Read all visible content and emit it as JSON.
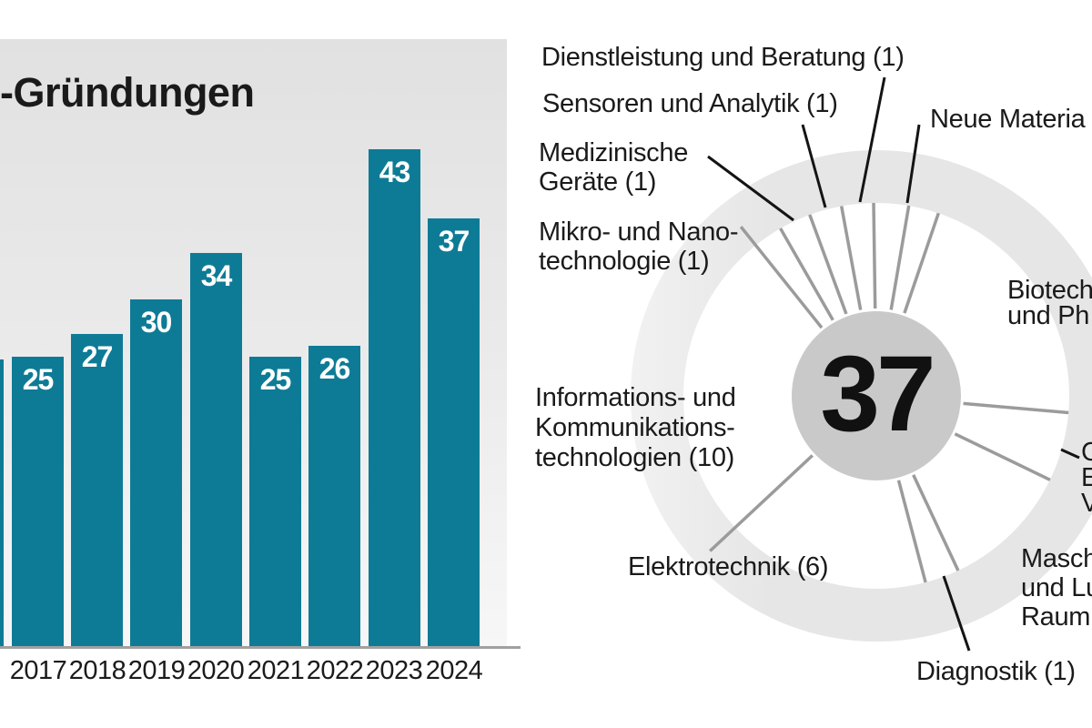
{
  "colors": {
    "bar_teal": "#0e7b96",
    "panel_gray_top": "#e1e1e1",
    "panel_gray_bottom": "#f7f7f7",
    "ring_gray": "#e6e6e6",
    "hub_gray": "#c9c9c9",
    "spoke_gray": "#9b9b9b",
    "leader_black": "#141414",
    "bar_value_text": "#ffffff"
  },
  "bar_chart": {
    "title": "-Gründungen",
    "years": [
      "2017",
      "2018",
      "2019",
      "2020",
      "2021",
      "2022",
      "2023",
      "2024"
    ],
    "values": [
      25,
      27,
      30,
      34,
      25,
      26,
      43,
      37
    ],
    "partial_bar_on_left_edge": true
  },
  "donut": {
    "total": "37",
    "labels": {
      "dienstleistung": {
        "l1": "Dienstleistung und Beratung (1)"
      },
      "sensoren": {
        "l1": "Sensoren und Analytik (1)"
      },
      "medizinische": {
        "l1": "Medizinische",
        "l2": "Geräte (1)"
      },
      "mikro": {
        "l1": "Mikro- und Nano-",
        "l2": "technologie (1)"
      },
      "neue_materialien": {
        "l1": "Neue Materia"
      },
      "biotech": {
        "l1": "Biotech",
        "l2": "und Ph"
      },
      "ikt": {
        "l1": "Informations- und",
        "l2": "Kommunikations-",
        "l3": "technologien (10)"
      },
      "elektrotechnik": {
        "l1": "Elektrotechnik (6)"
      },
      "maschinenbau": {
        "l1": "Masch",
        "l2": "und Lu",
        "l3": "Raum"
      },
      "diagnostik": {
        "l1": "Diagnostik (1)"
      },
      "clipped_right": {
        "l1": "C",
        "l2": "E",
        "l3": "V"
      }
    }
  },
  "chart_data": [
    {
      "type": "bar",
      "title": "-Gründungen (title clipped at left image edge)",
      "categories": [
        "2017",
        "2018",
        "2019",
        "2020",
        "2021",
        "2022",
        "2023",
        "2024"
      ],
      "values": [
        25,
        27,
        30,
        34,
        25,
        26,
        43,
        37
      ],
      "xlabel": "",
      "ylabel": "",
      "ylim": [
        0,
        45
      ],
      "bar_color": "#0e7b96",
      "value_labels": "inside bar top, white bold",
      "grid": false,
      "note": "a sliver of one earlier bar is clipped at the left image edge"
    },
    {
      "type": "pie",
      "subtype": "donut-wheel",
      "center_total": 37,
      "labels": [
        "Dienstleistung und Beratung",
        "Sensoren und Analytik",
        "Medizinische Geräte",
        "Mikro- und Nanotechnologie",
        "Neue Materia… (clipped)",
        "Biotech… und Ph… (clipped)",
        "Informations- und Kommunikationstechnologien",
        "Elektrotechnik",
        "Masch… und Lu… Raum… (clipped)",
        "Diagnostik",
        "C…/E…/V… (clipped at right edge)"
      ],
      "values": [
        1,
        1,
        1,
        1,
        1,
        null,
        10,
        6,
        null,
        1,
        null
      ],
      "legend_position": "labels around wheel with leader lines",
      "ring_color": "#e6e6e6",
      "hub_color": "#c9c9c9"
    }
  ]
}
